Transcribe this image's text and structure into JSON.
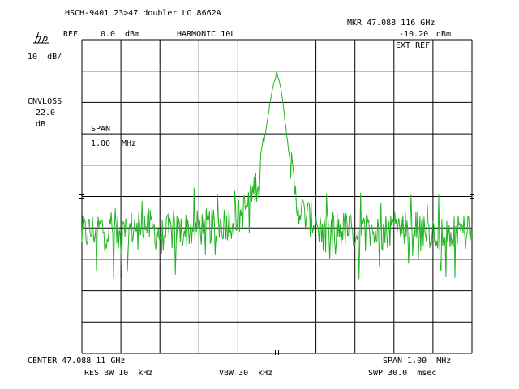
{
  "header": {
    "title": "HSCH-9401 23>47 doubler LO 8662A",
    "ref_label": "REF",
    "ref_value": "0.0",
    "ref_unit": "dBm",
    "mode": "HARMONIC 10L",
    "marker_label": "MKR 47.088 116 GHz",
    "marker_value": "-10.20",
    "marker_unit": "dBm",
    "ext_ref": "EXT REF"
  },
  "left_panel": {
    "scale": "10  dB/",
    "cnvloss_label": "CNVLOSS",
    "cnvloss_value": "22.0",
    "cnvloss_unit": "dB",
    "span_label": "SPAN",
    "span_value": "1.00",
    "span_unit": "MHz"
  },
  "footer": {
    "center": "CENTER 47.088 11 GHz",
    "span": "SPAN 1.00  MHz",
    "res_bw": "RES BW 10  kHz",
    "vbw": "VBW 30  kHz",
    "swp": "SWP 30.0  msec"
  },
  "colors": {
    "trace": "#22b322",
    "grid": "#000000",
    "background": "#ffffff"
  },
  "chart_data": {
    "type": "line",
    "x_unit": "MHz offset from center",
    "y_unit": "dBm",
    "xlim": [
      -0.5,
      0.5
    ],
    "ylim": [
      -100,
      0
    ],
    "grid": true,
    "divisions": {
      "x": 10,
      "y": 10
    },
    "center_frequency_ghz": 47.08811,
    "span_mhz": 1.0,
    "reference_level_dbm": 0.0,
    "scale_db_per_div": 10,
    "noise_floor_dbm": -62,
    "peak": {
      "x": 0.0,
      "y": -10.2
    },
    "series": [
      {
        "x": [
          -0.5,
          -0.45,
          -0.4,
          -0.35,
          -0.3,
          -0.25,
          -0.2,
          -0.15,
          -0.1,
          -0.07,
          -0.05,
          -0.04,
          -0.03,
          -0.02,
          -0.01,
          0.0,
          0.01,
          0.02,
          0.03,
          0.04,
          0.05,
          0.07,
          0.1,
          0.15,
          0.2,
          0.25,
          0.3,
          0.35,
          0.4,
          0.45,
          0.5
        ],
        "y": [
          -62,
          -60,
          -63,
          -58,
          -62,
          -61,
          -60,
          -59,
          -57,
          -52,
          -45,
          -38,
          -30,
          -22,
          -15,
          -10.2,
          -15,
          -25,
          -35,
          -44,
          -52,
          -56,
          -58,
          -60,
          -61,
          -62,
          -60,
          -59,
          -61,
          -60,
          -62
        ]
      }
    ]
  }
}
